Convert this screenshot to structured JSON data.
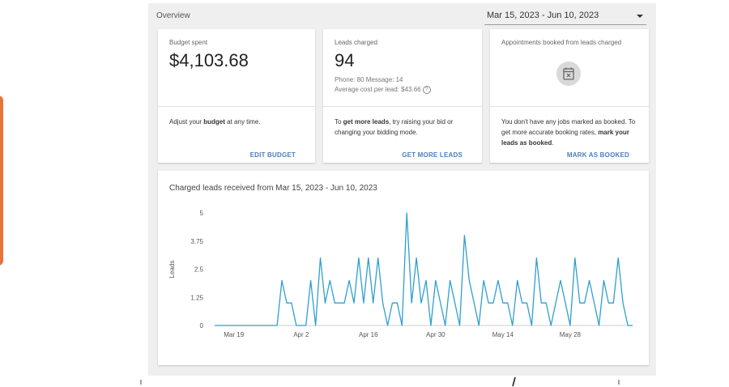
{
  "colors": {
    "accent": "#e8743a",
    "link": "#4a7fbd",
    "line": "#2f9fcf"
  },
  "overview": {
    "title": "Overview",
    "date_range": "Mar 15, 2023 - Jun 10, 2023"
  },
  "cards": {
    "budget": {
      "label": "Budget spent",
      "value": "$4,103.68",
      "body_pre": "Adjust your ",
      "body_bold": "budget",
      "body_post": " at any time.",
      "action": "EDIT BUDGET"
    },
    "leads": {
      "label": "Leads charged",
      "value": "94",
      "breakdown": "Phone: 80   Message: 14",
      "avg_cost": "Average cost per lead: $43.66",
      "help_glyph": "?",
      "body_pre": "To ",
      "body_bold": "get more leads",
      "body_post": ", try raising your bid or changing your bidding mode.",
      "action": "GET MORE LEADS"
    },
    "appointments": {
      "label": "Appointments booked from leads charged",
      "icon": "calendar-x-icon",
      "body_pre": "You don't have any jobs marked as booked. To get more accurate booking rates, ",
      "body_bold": "mark your leads as booked",
      "body_post": ".",
      "action": "MARK AS BOOKED"
    }
  },
  "chart_data": {
    "type": "line",
    "title": "Charged leads received from Mar 15, 2023 - Jun 10, 2023",
    "ylabel": "Leads",
    "xlabel": "",
    "ylim": [
      0,
      5
    ],
    "yticks": [
      "0",
      "1.25",
      "2.5",
      "3.75",
      "5"
    ],
    "xticks": [
      "Mar 19",
      "Apr 2",
      "Apr 16",
      "Apr 30",
      "May 14",
      "May 28"
    ],
    "grid": false,
    "x": [
      "Mar 15",
      "Mar 16",
      "Mar 17",
      "Mar 18",
      "Mar 19",
      "Mar 20",
      "Mar 21",
      "Mar 22",
      "Mar 23",
      "Mar 24",
      "Mar 25",
      "Mar 26",
      "Mar 27",
      "Mar 28",
      "Mar 29",
      "Mar 30",
      "Mar 31",
      "Apr 1",
      "Apr 2",
      "Apr 3",
      "Apr 4",
      "Apr 5",
      "Apr 6",
      "Apr 7",
      "Apr 8",
      "Apr 9",
      "Apr 10",
      "Apr 11",
      "Apr 12",
      "Apr 13",
      "Apr 14",
      "Apr 15",
      "Apr 16",
      "Apr 17",
      "Apr 18",
      "Apr 19",
      "Apr 20",
      "Apr 21",
      "Apr 22",
      "Apr 23",
      "Apr 24",
      "Apr 25",
      "Apr 26",
      "Apr 27",
      "Apr 28",
      "Apr 29",
      "Apr 30",
      "May 1",
      "May 2",
      "May 3",
      "May 4",
      "May 5",
      "May 6",
      "May 7",
      "May 8",
      "May 9",
      "May 10",
      "May 11",
      "May 12",
      "May 13",
      "May 14",
      "May 15",
      "May 16",
      "May 17",
      "May 18",
      "May 19",
      "May 20",
      "May 21",
      "May 22",
      "May 23",
      "May 24",
      "May 25",
      "May 26",
      "May 27",
      "May 28",
      "May 29",
      "May 30",
      "May 31",
      "Jun 1",
      "Jun 2",
      "Jun 3",
      "Jun 4",
      "Jun 5",
      "Jun 6",
      "Jun 7",
      "Jun 8",
      "Jun 9",
      "Jun 10"
    ],
    "values": [
      0,
      0,
      0,
      0,
      0,
      0,
      0,
      0,
      0,
      0,
      0,
      0,
      0,
      0,
      2,
      1,
      1,
      0,
      0,
      0,
      2,
      0,
      3,
      1,
      2,
      1,
      1,
      1,
      2,
      1,
      3,
      1,
      3,
      1,
      3,
      1,
      0,
      1,
      1,
      0,
      5,
      1,
      3,
      1,
      2,
      0,
      2,
      1,
      0,
      2,
      1,
      0,
      4,
      2,
      1,
      0,
      2,
      1,
      1,
      2,
      1,
      1,
      0,
      2,
      1,
      1,
      0,
      3,
      1,
      1,
      0,
      1,
      2,
      1,
      0,
      3,
      1,
      1,
      2,
      1,
      0,
      2,
      1,
      1,
      3,
      1,
      0,
      0
    ]
  }
}
